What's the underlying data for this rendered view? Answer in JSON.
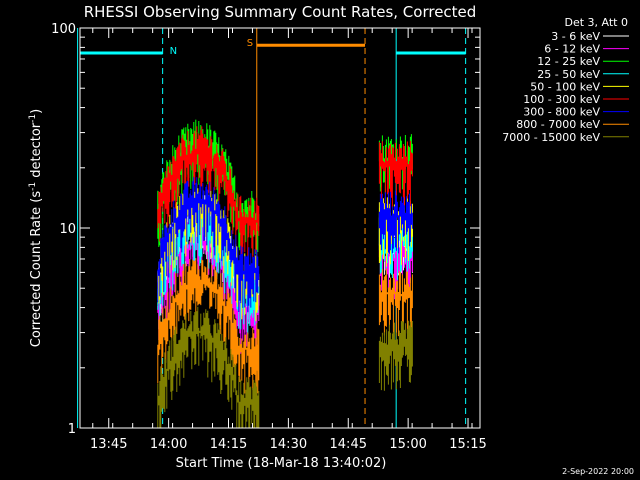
{
  "chart_data": {
    "type": "line",
    "title": "RHESSI Observing Summary Count Rates, Corrected",
    "xlabel": "Start Time (18-Mar-18 13:40:02)",
    "ylabel_main": "Corrected Count Rate (s",
    "ylabel_sup1": "-1",
    "ylabel_mid": " detector",
    "ylabel_sup2": "-1",
    "ylabel_end": ")",
    "scale_y": "log",
    "ylim": [
      1,
      100
    ],
    "xlim_minutes": [
      13.63,
      15.3
    ],
    "ytick_values": [
      1,
      10,
      100
    ],
    "ytick_labels": [
      "1",
      "10",
      "100"
    ],
    "xtick_labels": [
      "13:45",
      "14:00",
      "14:15",
      "14:30",
      "14:45",
      "15:00",
      "15:15"
    ],
    "xtick_hours": [
      13.75,
      14.0,
      14.25,
      14.5,
      14.75,
      15.0,
      15.25
    ],
    "detector_note": "Det 3, Att 0",
    "timestamp": "2-Sep-2022 20:00",
    "legend_position": "right",
    "series": [
      {
        "name": "3 - 6 keV",
        "color": "#ffffff",
        "base": 11.0
      },
      {
        "name": "6 - 12 keV",
        "color": "#ff00ff",
        "base": 8.5
      },
      {
        "name": "12 - 25 keV",
        "color": "#00ff00",
        "base": 26.0
      },
      {
        "name": "25 - 50 keV",
        "color": "#00ffff",
        "base": 10.5
      },
      {
        "name": "50 - 100 keV",
        "color": "#ffff00",
        "base": 12.5
      },
      {
        "name": "100 - 300 keV",
        "color": "#ff0000",
        "base": 24.0
      },
      {
        "name": "300 - 800 keV",
        "color": "#0000ff",
        "base": 13.5
      },
      {
        "name": "800 - 7000 keV",
        "color": "#ff8c00",
        "base": 5.5
      },
      {
        "name": "7000 - 15000 keV",
        "color": "#808000",
        "base": 3.0
      }
    ],
    "segments": [
      {
        "start_hour": 13.955,
        "end_hour": 14.378,
        "profile": "hump"
      },
      {
        "start_hour": 14.88,
        "end_hour": 15.02,
        "profile": "flat"
      }
    ],
    "night_flags": [
      {
        "label": "N",
        "start_hour": 13.62,
        "end_hour": 13.975,
        "y": 75,
        "color": "#00ffff"
      },
      {
        "label": "",
        "start_hour": 14.95,
        "end_hour": 15.24,
        "y": 75,
        "color": "#00ffff"
      }
    ],
    "saa_flags": [
      {
        "label": "S",
        "start_hour": 14.368,
        "end_hour": 14.82,
        "y": 82,
        "color": "#ff8c00"
      }
    ],
    "vlines": [
      {
        "hour": 13.62,
        "color": "#00ffff",
        "dashed": false
      },
      {
        "hour": 13.975,
        "color": "#00ffff",
        "dashed": true
      },
      {
        "hour": 14.95,
        "color": "#00ffff",
        "dashed": false
      },
      {
        "hour": 15.24,
        "color": "#00ffff",
        "dashed": true
      },
      {
        "hour": 14.368,
        "color": "#ff8c00",
        "dashed": false
      },
      {
        "hour": 14.82,
        "color": "#ff8c00",
        "dashed": true
      }
    ]
  }
}
